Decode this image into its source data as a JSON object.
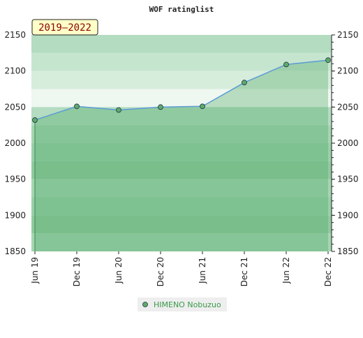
{
  "chart_data": {
    "type": "area",
    "title": "WOF ratinglist",
    "badge": "2019–2022",
    "categories": [
      "Jun 19",
      "Dec 19",
      "Jun 20",
      "Dec 20",
      "Jun 21",
      "Dec 21",
      "Jun 22",
      "Dec 22"
    ],
    "series": [
      {
        "name": "HIMENO Nobuzuo",
        "color": "#5cab6a",
        "line_color": "#5b9bd5",
        "values": [
          2032,
          2051,
          2046,
          2050,
          2051,
          2084,
          2109,
          2115
        ]
      }
    ],
    "ylim": [
      1850,
      2150
    ],
    "yticks": [
      1850,
      1900,
      1950,
      2000,
      2050,
      2100,
      2150
    ],
    "right_axis": true
  }
}
